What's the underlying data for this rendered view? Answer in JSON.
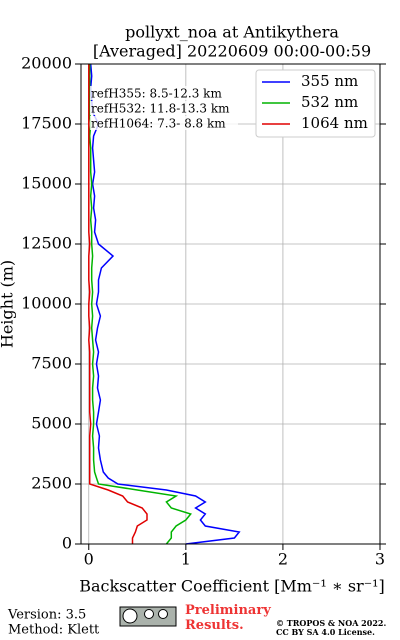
{
  "chart_data": {
    "type": "line",
    "title": "pollyxt_noa at Antikythera",
    "subtitle": "[Averaged] 20220609 00:00-00:59",
    "xlabel": "Backscatter Coefficient [Mm⁻¹ ∗ sr⁻¹]",
    "ylabel": "Height (m)",
    "annotations": [
      "refH355:  8.5-12.3 km",
      "refH532: 11.8-13.3 km",
      "refH1064:  7.3- 8.8 km"
    ],
    "y": [
      0,
      250,
      500,
      750,
      1000,
      1250,
      1500,
      1750,
      2000,
      2250,
      2500,
      2750,
      3000,
      3500,
      4000,
      4500,
      5000,
      5500,
      6000,
      6500,
      7000,
      7500,
      8000,
      8500,
      9000,
      9500,
      10000,
      10500,
      11000,
      11500,
      12000,
      12500,
      13000,
      13500,
      14000,
      14500,
      15000,
      15500,
      16000,
      16500,
      17000,
      17500,
      18000,
      18500,
      19000,
      19500,
      20000
    ],
    "series": [
      {
        "name": "355 nm",
        "color": "#0000ff",
        "values": [
          1.0,
          1.5,
          1.55,
          1.2,
          1.15,
          1.2,
          1.1,
          1.2,
          1.1,
          0.8,
          0.3,
          0.2,
          0.15,
          0.12,
          0.1,
          0.11,
          0.08,
          0.1,
          0.12,
          0.09,
          0.1,
          0.08,
          0.1,
          0.07,
          0.09,
          0.12,
          0.08,
          0.1,
          0.1,
          0.13,
          0.25,
          0.1,
          0.06,
          0.07,
          0.05,
          0.06,
          0.04,
          0.06,
          0.05,
          0.04,
          0.05,
          0.1,
          0.04,
          0.03,
          0.02,
          0.03,
          0.02
        ]
      },
      {
        "name": "532 nm",
        "color": "#00b400",
        "values": [
          0.8,
          0.85,
          0.85,
          0.9,
          1.0,
          1.05,
          0.85,
          0.8,
          0.9,
          0.5,
          0.1,
          0.08,
          0.06,
          0.05,
          0.05,
          0.04,
          0.05,
          0.05,
          0.04,
          0.04,
          0.05,
          0.04,
          0.05,
          0.04,
          0.03,
          0.04,
          0.03,
          0.04,
          0.03,
          0.03,
          0.04,
          0.03,
          0.03,
          0.02,
          0.03,
          0.02,
          0.03,
          0.02,
          0.02,
          0.02,
          0.01,
          0.02,
          0.01,
          0.01,
          0.01,
          0.01,
          0.01
        ]
      },
      {
        "name": "1064 nm",
        "color": "#e00000",
        "values": [
          0.45,
          0.45,
          0.48,
          0.5,
          0.6,
          0.6,
          0.55,
          0.4,
          0.35,
          0.2,
          0.01,
          0.01,
          0.01,
          0.01,
          0.01,
          0.01,
          0.02,
          0.01,
          0.01,
          0.01,
          0.01,
          0.01,
          0.01,
          0.0,
          0.01,
          0.0,
          0.0,
          0.01,
          0.0,
          0.0,
          0.0,
          0.01,
          0.0,
          0.0,
          0.0,
          0.0,
          0.0,
          0.0,
          0.0,
          0.0,
          0.0,
          0.0,
          0.0,
          0.0,
          0.0,
          0.0,
          0.0
        ]
      }
    ],
    "xlim": [
      -0.08,
      3
    ],
    "ylim": [
      0,
      20000
    ],
    "xticks": [
      0,
      1,
      2,
      3
    ],
    "yticks": [
      0,
      2500,
      5000,
      7500,
      10000,
      12500,
      15000,
      17500,
      20000
    ],
    "grid": true,
    "legend": "upper right"
  },
  "footer": {
    "version": "Version: 3.5",
    "method": "Method: Klett",
    "status": "Preliminary Results.",
    "copyright": "© TROPOS & NOA 2022.",
    "license": "CC BY SA 4.0 License."
  }
}
